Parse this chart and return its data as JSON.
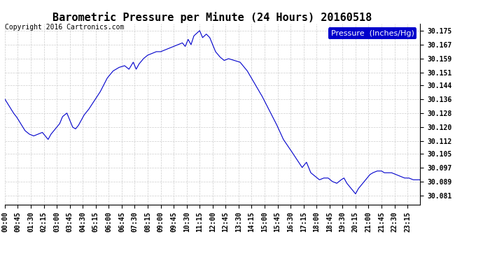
{
  "title": "Barometric Pressure per Minute (24 Hours) 20160518",
  "copyright": "Copyright 2016 Cartronics.com",
  "legend_label": "Pressure  (Inches/Hg)",
  "legend_bg": "#0000cc",
  "legend_text_color": "#ffffff",
  "line_color": "#0000cc",
  "background_color": "#ffffff",
  "grid_color": "#cccccc",
  "yticks": [
    30.081,
    30.089,
    30.097,
    30.105,
    30.112,
    30.12,
    30.128,
    30.136,
    30.144,
    30.151,
    30.159,
    30.167,
    30.175
  ],
  "ylim": [
    30.076,
    30.179
  ],
  "xtick_labels": [
    "00:00",
    "00:45",
    "01:30",
    "02:15",
    "03:00",
    "03:45",
    "04:30",
    "05:15",
    "06:00",
    "06:45",
    "07:30",
    "08:15",
    "09:00",
    "09:45",
    "10:30",
    "11:15",
    "12:00",
    "12:45",
    "13:30",
    "14:15",
    "15:00",
    "15:45",
    "16:30",
    "17:15",
    "18:00",
    "18:45",
    "19:30",
    "20:15",
    "21:00",
    "21:45",
    "22:30",
    "23:15"
  ],
  "title_fontsize": 11,
  "copyright_fontsize": 7,
  "tick_fontsize": 7,
  "legend_fontsize": 8,
  "waypoints": [
    [
      0,
      30.136
    ],
    [
      15,
      30.132
    ],
    [
      30,
      30.128
    ],
    [
      40,
      30.126
    ],
    [
      55,
      30.122
    ],
    [
      70,
      30.118
    ],
    [
      85,
      30.116
    ],
    [
      100,
      30.115
    ],
    [
      115,
      30.116
    ],
    [
      130,
      30.117
    ],
    [
      140,
      30.115
    ],
    [
      150,
      30.113
    ],
    [
      160,
      30.116
    ],
    [
      175,
      30.119
    ],
    [
      190,
      30.122
    ],
    [
      200,
      30.126
    ],
    [
      215,
      30.128
    ],
    [
      225,
      30.124
    ],
    [
      235,
      30.12
    ],
    [
      245,
      30.119
    ],
    [
      255,
      30.121
    ],
    [
      265,
      30.124
    ],
    [
      275,
      30.127
    ],
    [
      290,
      30.13
    ],
    [
      310,
      30.135
    ],
    [
      330,
      30.14
    ],
    [
      355,
      30.148
    ],
    [
      375,
      30.152
    ],
    [
      395,
      30.154
    ],
    [
      415,
      30.155
    ],
    [
      430,
      30.153
    ],
    [
      445,
      30.157
    ],
    [
      455,
      30.153
    ],
    [
      465,
      30.156
    ],
    [
      480,
      30.159
    ],
    [
      495,
      30.161
    ],
    [
      510,
      30.162
    ],
    [
      525,
      30.163
    ],
    [
      540,
      30.163
    ],
    [
      555,
      30.164
    ],
    [
      570,
      30.165
    ],
    [
      585,
      30.166
    ],
    [
      600,
      30.167
    ],
    [
      615,
      30.168
    ],
    [
      625,
      30.166
    ],
    [
      635,
      30.17
    ],
    [
      645,
      30.167
    ],
    [
      655,
      30.172
    ],
    [
      668,
      30.174
    ],
    [
      675,
      30.175
    ],
    [
      685,
      30.171
    ],
    [
      698,
      30.173
    ],
    [
      710,
      30.171
    ],
    [
      720,
      30.167
    ],
    [
      730,
      30.163
    ],
    [
      745,
      30.16
    ],
    [
      760,
      30.158
    ],
    [
      775,
      30.159
    ],
    [
      795,
      30.158
    ],
    [
      815,
      30.157
    ],
    [
      840,
      30.152
    ],
    [
      865,
      30.145
    ],
    [
      890,
      30.138
    ],
    [
      915,
      30.13
    ],
    [
      940,
      30.122
    ],
    [
      965,
      30.113
    ],
    [
      990,
      30.107
    ],
    [
      1010,
      30.102
    ],
    [
      1030,
      30.097
    ],
    [
      1045,
      30.1
    ],
    [
      1060,
      30.094
    ],
    [
      1075,
      30.092
    ],
    [
      1090,
      30.09
    ],
    [
      1105,
      30.091
    ],
    [
      1120,
      30.091
    ],
    [
      1135,
      30.089
    ],
    [
      1150,
      30.088
    ],
    [
      1165,
      30.09
    ],
    [
      1175,
      30.091
    ],
    [
      1185,
      30.088
    ],
    [
      1195,
      30.086
    ],
    [
      1205,
      30.084
    ],
    [
      1215,
      30.082
    ],
    [
      1225,
      30.085
    ],
    [
      1240,
      30.088
    ],
    [
      1255,
      30.091
    ],
    [
      1265,
      30.093
    ],
    [
      1275,
      30.094
    ],
    [
      1290,
      30.095
    ],
    [
      1305,
      30.095
    ],
    [
      1315,
      30.094
    ],
    [
      1325,
      30.094
    ],
    [
      1340,
      30.094
    ],
    [
      1355,
      30.093
    ],
    [
      1370,
      30.092
    ],
    [
      1385,
      30.091
    ],
    [
      1400,
      30.091
    ],
    [
      1415,
      30.09
    ],
    [
      1430,
      30.09
    ],
    [
      1439,
      30.09
    ]
  ]
}
